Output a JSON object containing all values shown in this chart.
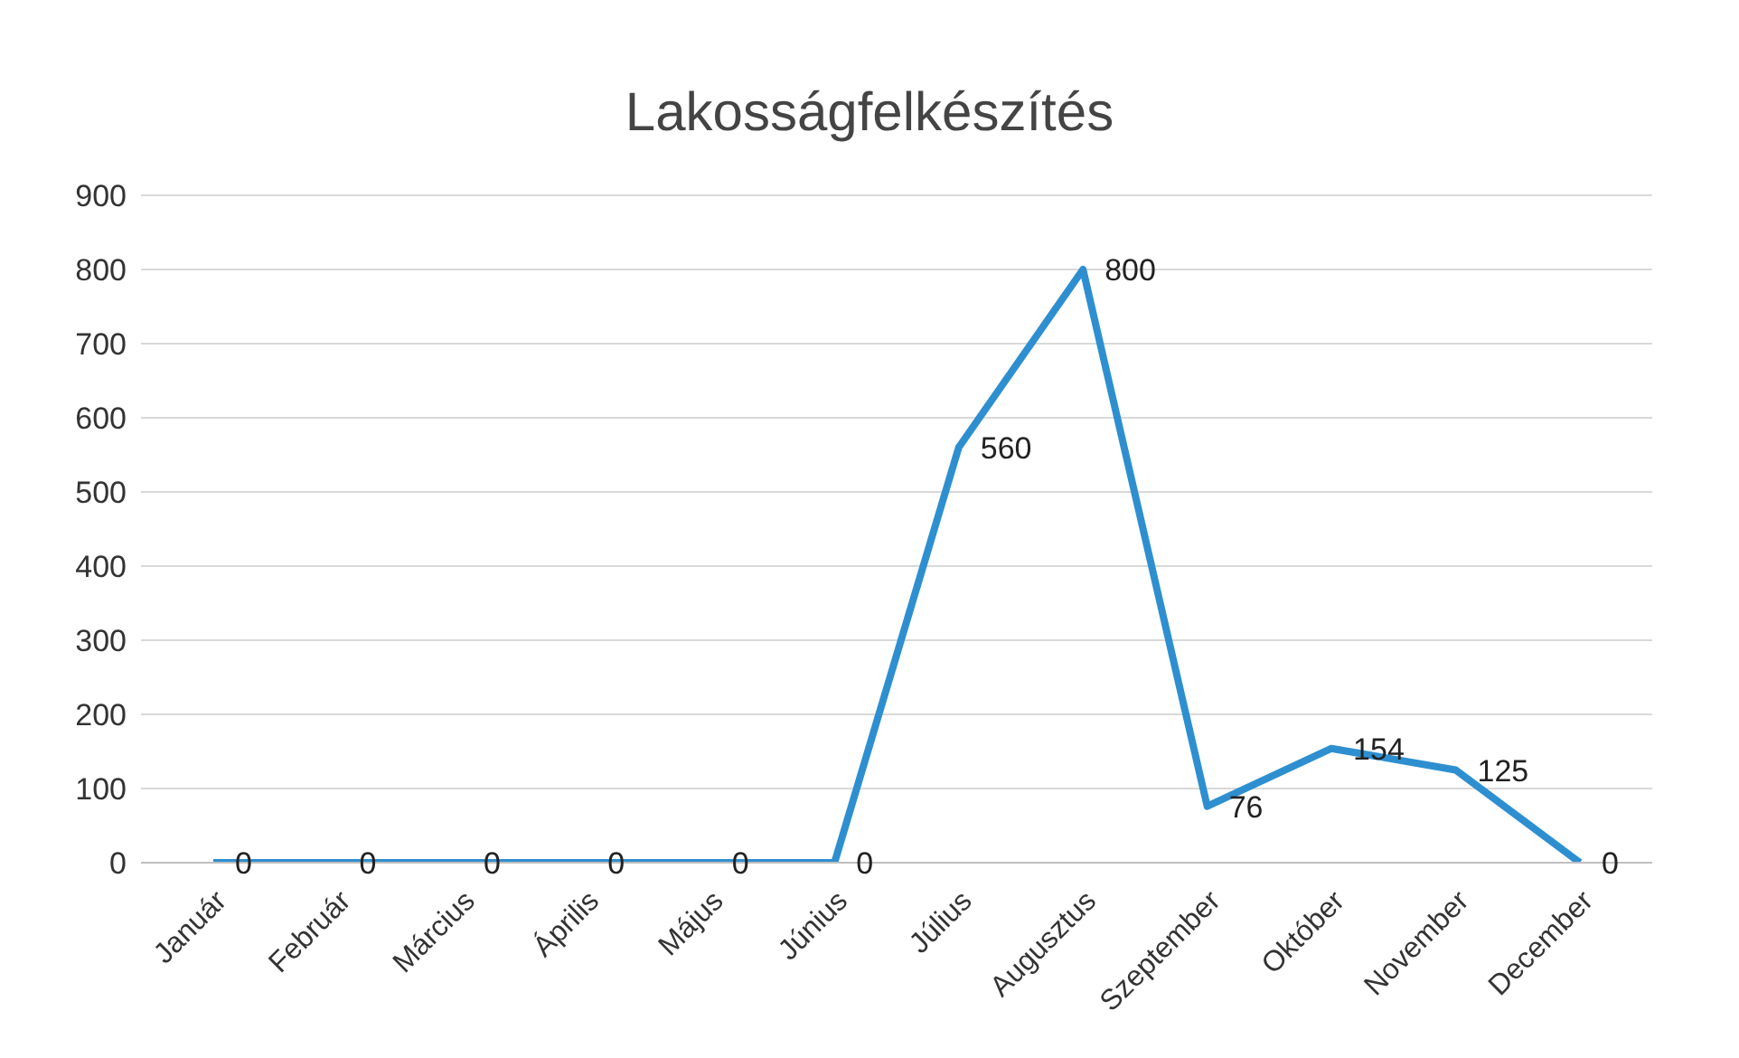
{
  "chart_data": {
    "type": "line",
    "title": "Lakosságfelkészítés",
    "categories": [
      "Január",
      "Február",
      "Március",
      "Április",
      "Május",
      "Június",
      "Július",
      "Augusztus",
      "Szeptember",
      "Október",
      "November",
      "December"
    ],
    "series": [
      {
        "color": "#2e8fd0",
        "values": [
          0,
          0,
          0,
          0,
          0,
          0,
          560,
          800,
          76,
          154,
          125,
          0
        ]
      }
    ],
    "ylim": [
      0,
      900
    ],
    "yticks": [
      0,
      100,
      200,
      300,
      400,
      500,
      600,
      700,
      800,
      900
    ],
    "grid": "y",
    "data_labels": true,
    "marker": "none",
    "line_style": "solid",
    "legend": false
  }
}
